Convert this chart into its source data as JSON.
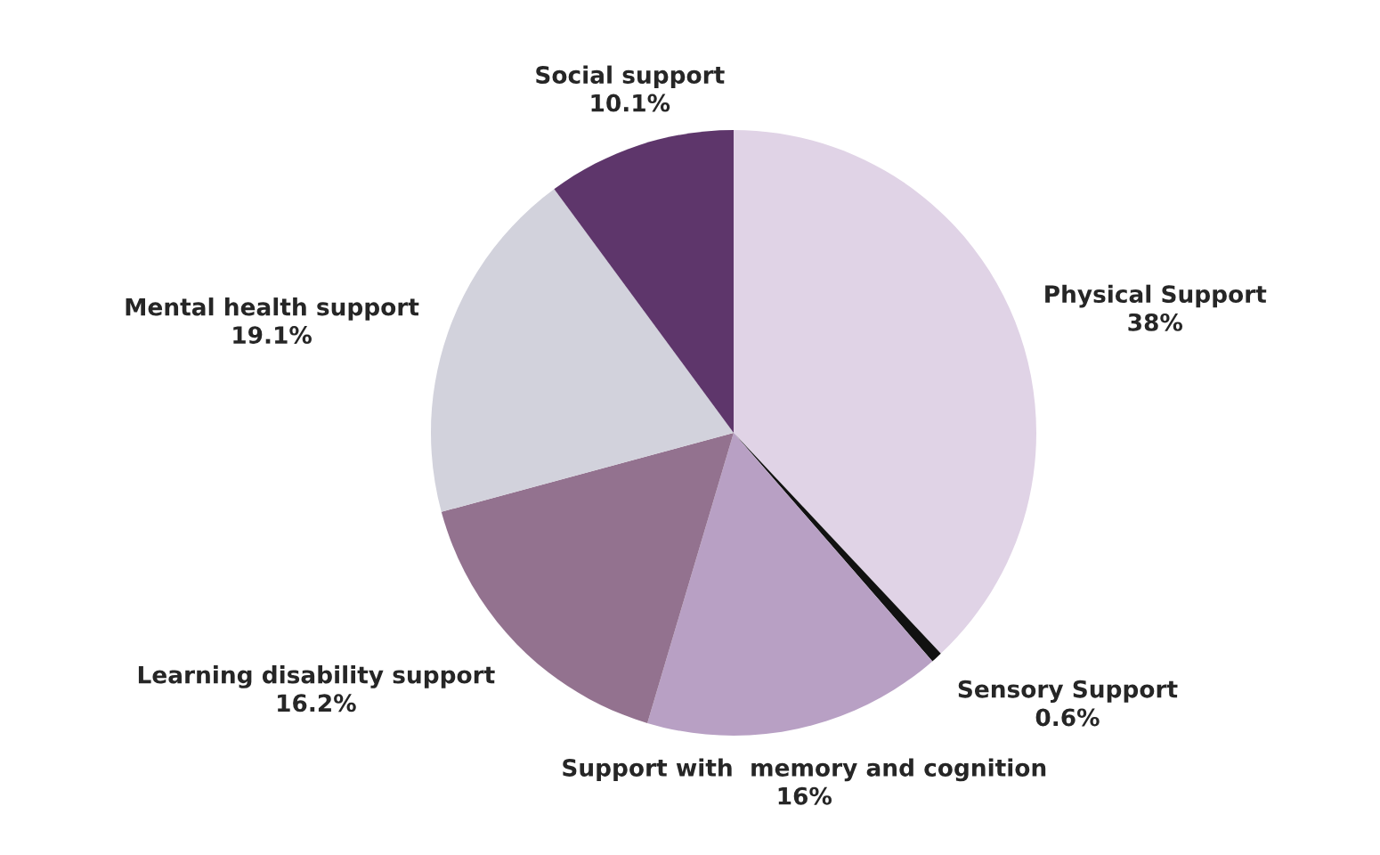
{
  "chart_data": {
    "type": "pie",
    "categories": [
      "Physical Support",
      "Sensory Support",
      "Support with  memory and cognition",
      "Learning disability support",
      "Mental health support",
      "Social support"
    ],
    "values": [
      38,
      0.6,
      16,
      16.2,
      19.1,
      10.1
    ],
    "value_labels": [
      "38%",
      "0.6%",
      "16%",
      "16.2%",
      "19.1%",
      "10.1%"
    ],
    "colors": [
      "#e0d3e6",
      "#111111",
      "#b8a0c4",
      "#93728f",
      "#d2d2dc",
      "#5e366b"
    ]
  }
}
